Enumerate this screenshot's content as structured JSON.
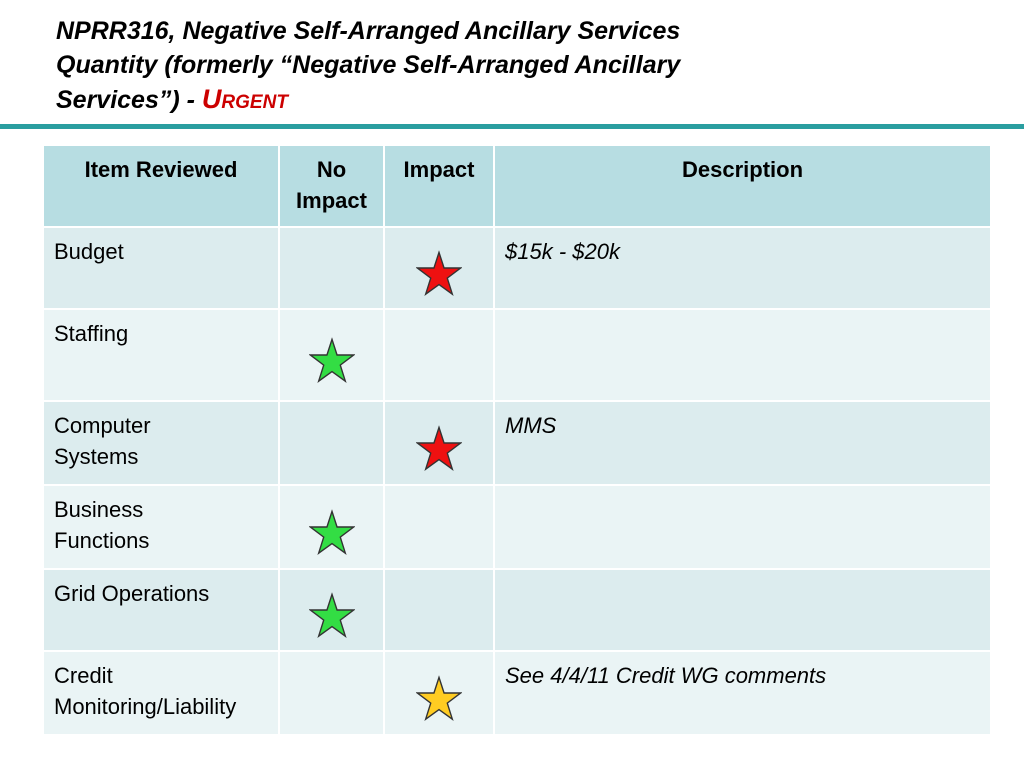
{
  "slide": {
    "title_main": "NPRR316, Negative Self-Arranged Ancillary Services\nQuantity (formerly “Negative Self-Arranged Ancillary\nServices”)  - ",
    "title_urgent": "Urgent"
  },
  "colors": {
    "rule": "#2a9ea0",
    "header_bg": "#b7dde2",
    "row_bg_a": "#dcecee",
    "row_bg_b": "#eaf4f5",
    "star_red": "#ee1111",
    "star_green": "#33dd44",
    "star_yellow": "#ffcc22"
  },
  "table": {
    "headers": {
      "item": "Item Reviewed",
      "no_impact": "No Impact",
      "impact": "Impact",
      "description": "Description"
    },
    "rows": [
      {
        "item": "Budget",
        "mark": "impact",
        "star_color": "red",
        "description": "$15k - $20k"
      },
      {
        "item": "Staffing",
        "mark": "no_impact",
        "star_color": "green",
        "description": ""
      },
      {
        "item": "Computer\nSystems",
        "mark": "impact",
        "star_color": "red",
        "description": "MMS"
      },
      {
        "item": "Business\nFunctions",
        "mark": "no_impact",
        "star_color": "green",
        "description": ""
      },
      {
        "item": "Grid Operations",
        "mark": "no_impact",
        "star_color": "green",
        "description": ""
      },
      {
        "item": "Credit\nMonitoring/Liability",
        "mark": "impact",
        "star_color": "yellow",
        "description": "See 4/4/11 Credit WG comments"
      }
    ]
  }
}
